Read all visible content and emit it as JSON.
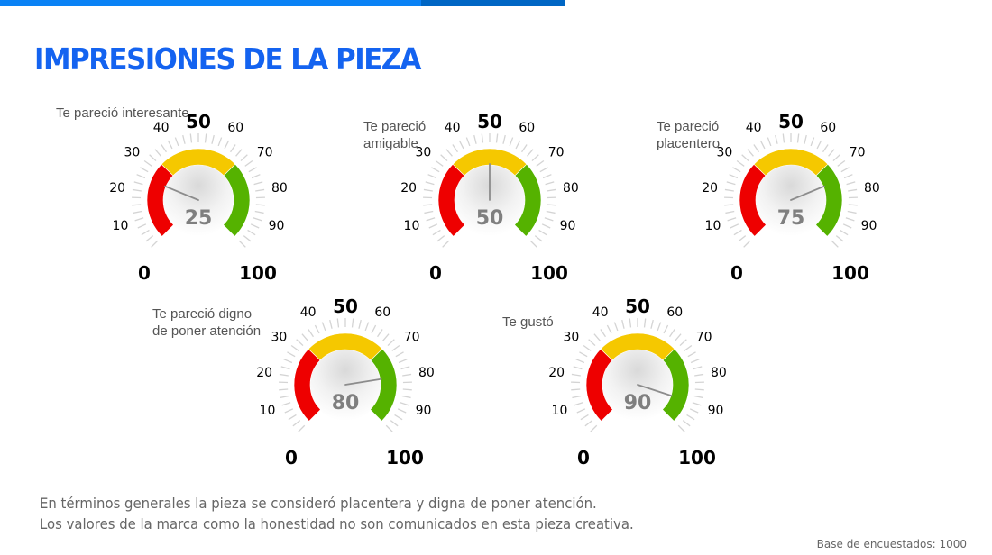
{
  "header": {
    "title": "IMPRESIONES DE LA PIEZA",
    "accent_color": "#0a82f5",
    "accent_color_dark": "#0066c4",
    "title_color": "#1463f0"
  },
  "chart_data": {
    "type": "gauge",
    "min": 0,
    "max": 100,
    "tick_labels": [
      "0",
      "10",
      "20",
      "30",
      "40",
      "50",
      "60",
      "70",
      "80",
      "90",
      "100"
    ],
    "bands": [
      {
        "name": "low",
        "from": 0,
        "to": 33,
        "color": "#ee0000"
      },
      {
        "name": "mid",
        "from": 33,
        "to": 67,
        "color": "#f5c800"
      },
      {
        "name": "high",
        "from": 67,
        "to": 100,
        "color": "#55b200"
      }
    ],
    "gauges": [
      {
        "label": [
          "Te pareció interesante"
        ],
        "value": 25,
        "value_text": "25"
      },
      {
        "label": [
          "Te pareció",
          "amigable"
        ],
        "value": 50,
        "value_text": "50"
      },
      {
        "label": [
          "Te pareció",
          "placentero"
        ],
        "value": 75,
        "value_text": "75"
      },
      {
        "label": [
          "Te pareció digno",
          "de poner atención"
        ],
        "value": 80,
        "value_text": "80"
      },
      {
        "label": [
          "Te gustó"
        ],
        "value": 90,
        "value_text": "90"
      }
    ]
  },
  "summary": {
    "lines": [
      "En términos generales la pieza se consideró placentera y digna de poner atención.",
      "Los valores de la marca como la honestidad no son comunicados en esta pieza creativa."
    ]
  },
  "footer": {
    "base_text": "Base de encuestados: 1000"
  }
}
